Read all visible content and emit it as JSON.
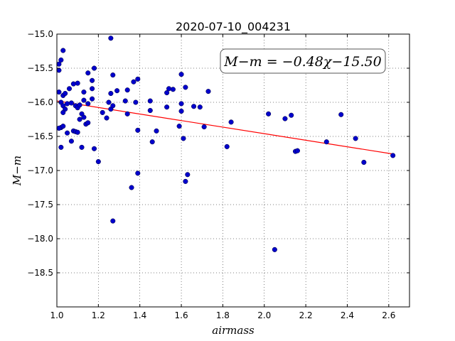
{
  "chart_data": {
    "type": "scatter",
    "title": "2020-07-10_004231",
    "xlabel": "airmass",
    "ylabel": "M−m",
    "xlim": [
      1.0,
      2.7
    ],
    "ylim": [
      -19.0,
      -15.0
    ],
    "y_inverted": true,
    "grid": true,
    "grid_style": "dotted",
    "xticks": [
      1.0,
      1.2,
      1.4,
      1.6,
      1.8,
      2.0,
      2.2,
      2.4,
      2.6
    ],
    "xtick_labels": [
      "1.0",
      "1.2",
      "1.4",
      "1.6",
      "1.8",
      "2.0",
      "2.2",
      "2.4",
      "2.6"
    ],
    "yticks": [
      -15.0,
      -15.5,
      -16.0,
      -16.5,
      -17.0,
      -17.5,
      -18.0,
      -18.5
    ],
    "ytick_labels": [
      "−15.0",
      "−15.5",
      "−16.0",
      "−16.5",
      "−17.0",
      "−17.5",
      "−18.0",
      "−18.5"
    ],
    "annotation": "M−m = −0.48χ−15.50",
    "point_color": "#0000cc",
    "fit_color": "#ff0000",
    "fit": {
      "slope": -0.48,
      "intercept": -15.5,
      "x_range": [
        1.0,
        2.62
      ]
    },
    "points": [
      [
        1.01,
        -15.53
      ],
      [
        1.01,
        -15.44
      ],
      [
        1.02,
        -15.38
      ],
      [
        1.03,
        -15.24
      ],
      [
        1.01,
        -15.85
      ],
      [
        1.03,
        -15.9
      ],
      [
        1.04,
        -15.87
      ],
      [
        1.02,
        -16.0
      ],
      [
        1.03,
        -16.05
      ],
      [
        1.04,
        -16.1
      ],
      [
        1.03,
        -16.15
      ],
      [
        1.05,
        -16.02
      ],
      [
        1.07,
        -16.01
      ],
      [
        1.06,
        -15.8
      ],
      [
        1.08,
        -15.73
      ],
      [
        1.1,
        -15.72
      ],
      [
        1.09,
        -16.05
      ],
      [
        1.1,
        -16.08
      ],
      [
        1.11,
        -16.04
      ],
      [
        1.12,
        -16.17
      ],
      [
        1.13,
        -16.22
      ],
      [
        1.13,
        -15.85
      ],
      [
        1.15,
        -15.57
      ],
      [
        1.17,
        -15.68
      ],
      [
        1.17,
        -15.8
      ],
      [
        1.18,
        -15.5
      ],
      [
        1.17,
        -15.95
      ],
      [
        1.15,
        -16.02
      ],
      [
        1.13,
        -15.97
      ],
      [
        1.11,
        -16.25
      ],
      [
        1.14,
        -16.32
      ],
      [
        1.15,
        -16.3
      ],
      [
        1.02,
        -16.37
      ],
      [
        1.01,
        -16.38
      ],
      [
        1.03,
        -16.35
      ],
      [
        1.05,
        -16.45
      ],
      [
        1.08,
        -16.42
      ],
      [
        1.09,
        -16.43
      ],
      [
        1.1,
        -16.44
      ],
      [
        1.07,
        -16.57
      ],
      [
        1.12,
        -16.66
      ],
      [
        1.02,
        -16.66
      ],
      [
        1.18,
        -16.68
      ],
      [
        1.2,
        -16.87
      ],
      [
        1.22,
        -16.15
      ],
      [
        1.24,
        -16.23
      ],
      [
        1.25,
        -16.0
      ],
      [
        1.26,
        -16.1
      ],
      [
        1.27,
        -16.05
      ],
      [
        1.26,
        -15.87
      ],
      [
        1.27,
        -15.6
      ],
      [
        1.29,
        -15.83
      ],
      [
        1.33,
        -15.98
      ],
      [
        1.34,
        -15.82
      ],
      [
        1.34,
        -16.17
      ],
      [
        1.37,
        -15.7
      ],
      [
        1.38,
        -16.0
      ],
      [
        1.39,
        -15.66
      ],
      [
        1.39,
        -16.41
      ],
      [
        1.39,
        -17.04
      ],
      [
        1.36,
        -17.25
      ],
      [
        1.27,
        -17.74
      ],
      [
        1.26,
        -15.06
      ],
      [
        1.45,
        -15.98
      ],
      [
        1.45,
        -16.12
      ],
      [
        1.46,
        -16.58
      ],
      [
        1.48,
        -16.42
      ],
      [
        1.53,
        -15.86
      ],
      [
        1.53,
        -16.07
      ],
      [
        1.54,
        -15.8
      ],
      [
        1.56,
        -15.81
      ],
      [
        1.59,
        -16.35
      ],
      [
        1.6,
        -15.59
      ],
      [
        1.6,
        -16.02
      ],
      [
        1.6,
        -16.13
      ],
      [
        1.61,
        -16.53
      ],
      [
        1.62,
        -15.78
      ],
      [
        1.62,
        -17.16
      ],
      [
        1.63,
        -17.06
      ],
      [
        1.66,
        -16.06
      ],
      [
        1.69,
        -16.07
      ],
      [
        1.71,
        -16.36
      ],
      [
        1.73,
        -15.84
      ],
      [
        1.82,
        -16.65
      ],
      [
        1.84,
        -16.29
      ],
      [
        2.02,
        -16.17
      ],
      [
        2.05,
        -18.16
      ],
      [
        2.1,
        -16.24
      ],
      [
        2.13,
        -16.19
      ],
      [
        2.15,
        -16.72
      ],
      [
        2.16,
        -16.71
      ],
      [
        2.3,
        -16.58
      ],
      [
        2.37,
        -16.18
      ],
      [
        2.44,
        -16.53
      ],
      [
        2.48,
        -16.88
      ],
      [
        2.62,
        -16.78
      ]
    ]
  }
}
